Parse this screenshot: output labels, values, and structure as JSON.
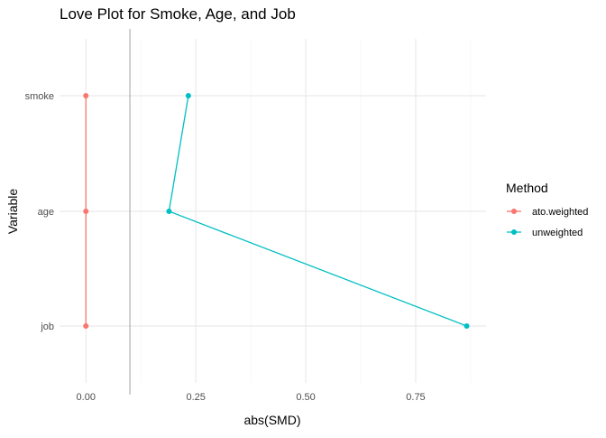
{
  "chart_data": {
    "type": "line",
    "title": "Love Plot for Smoke, Age, and Job",
    "xlabel": "abs(SMD)",
    "ylabel": "Variable",
    "xlim": [
      -0.06,
      0.91
    ],
    "x_ticks": [
      0.0,
      0.25,
      0.5,
      0.75
    ],
    "x_tick_labels": [
      "0.00",
      "0.25",
      "0.50",
      "0.75"
    ],
    "categories": [
      "smoke",
      "age",
      "job"
    ],
    "reference_line": 0.1,
    "grid": true,
    "legend": {
      "title": "Method",
      "position": "right"
    },
    "series": [
      {
        "name": "ato.weighted",
        "color": "#F8766D",
        "points": [
          {
            "variable": "smoke",
            "value": 0.0
          },
          {
            "variable": "age",
            "value": 0.0
          },
          {
            "variable": "job",
            "value": 0.0
          }
        ]
      },
      {
        "name": "unweighted",
        "color": "#00BFC4",
        "points": [
          {
            "variable": "smoke",
            "value": 0.233
          },
          {
            "variable": "age",
            "value": 0.189
          },
          {
            "variable": "job",
            "value": 0.866
          }
        ]
      }
    ]
  }
}
